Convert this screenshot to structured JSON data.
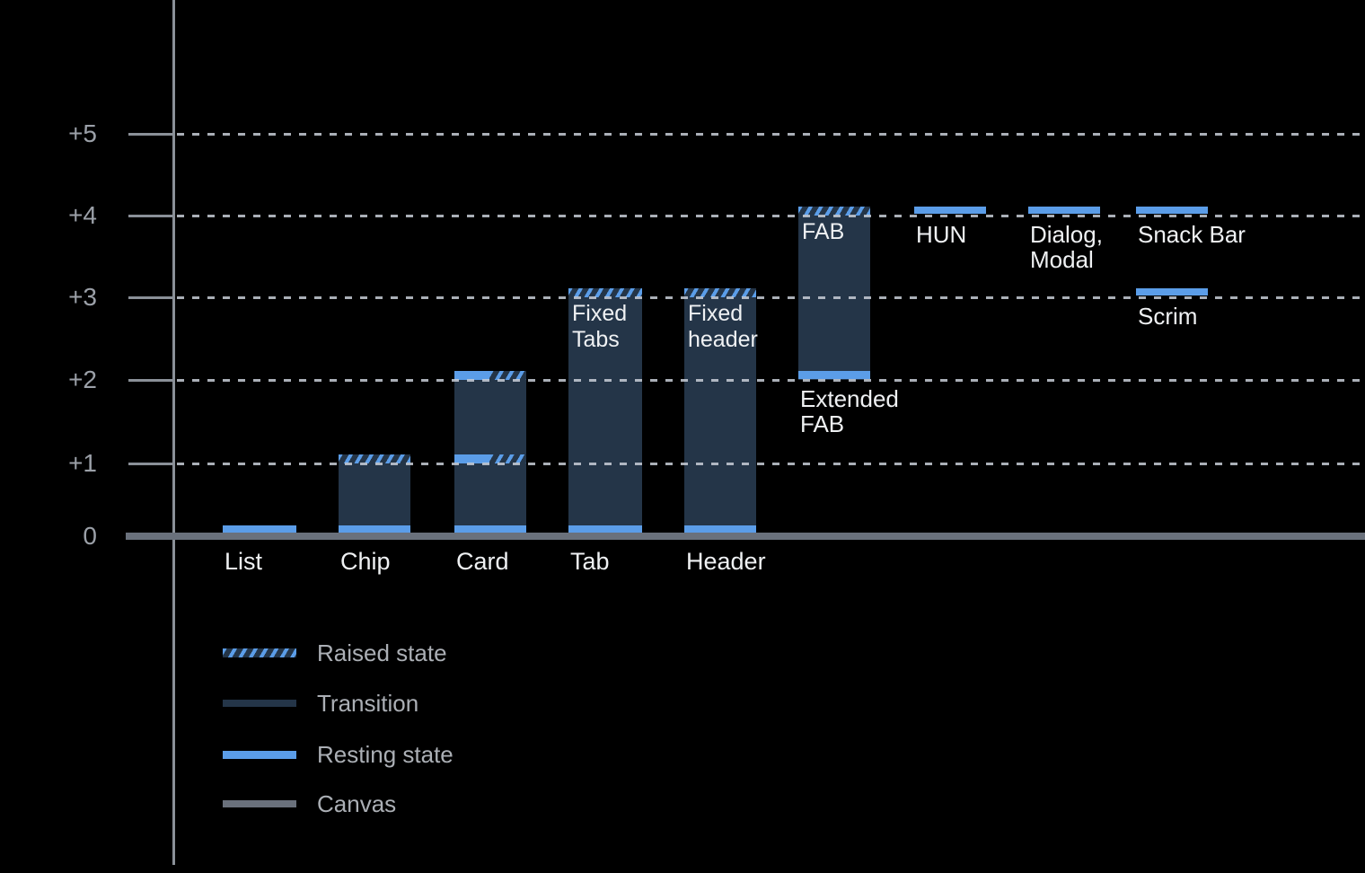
{
  "background": "#000000",
  "colors": {
    "resting_state": "#5B9DE8",
    "transition": "#243548",
    "raised_state_hatch": "#5B9DE8",
    "canvas": "#6A717C",
    "axis": "#8A9098",
    "gridline": "#C8CED7",
    "y_label_text": "#9BA0A8",
    "bar_label_text": "#EFF1F3",
    "legend_label_text": "#ABAFB5"
  },
  "y_axis": {
    "tick_labels": [
      "+5",
      "+4",
      "+3",
      "+2",
      "+1",
      "0"
    ]
  },
  "legend": [
    {
      "swatch": "raised",
      "label": "Raised state"
    },
    {
      "swatch": "transition",
      "label": "Transition"
    },
    {
      "swatch": "resting",
      "label": "Resting state"
    },
    {
      "swatch": "canvas",
      "label": "Canvas"
    }
  ],
  "chart_data": {
    "type": "bar",
    "title": "",
    "xlabel": "",
    "ylabel": "",
    "ylim": [
      0,
      5
    ],
    "y_tick_labels": [
      "+5",
      "+4",
      "+3",
      "+2",
      "+1",
      "0"
    ],
    "grid": "dotted-horizontal",
    "legend_position": "bottom-left",
    "x_axis_labels": [
      "List",
      "Chip",
      "Card",
      "Tab",
      "Header"
    ],
    "components": [
      {
        "label": "List",
        "axis_label": "List",
        "bands": [
          {
            "level": 0,
            "style": "resting"
          }
        ],
        "transition": null
      },
      {
        "label": "Chip",
        "axis_label": "Chip",
        "bands": [
          {
            "level": 1,
            "style": "raised"
          },
          {
            "level": 0,
            "style": "resting"
          }
        ],
        "transition": [
          0,
          1
        ]
      },
      {
        "label": "Card",
        "axis_label": "Card",
        "bands": [
          {
            "level": 2,
            "style": "split"
          },
          {
            "level": 1,
            "style": "split"
          },
          {
            "level": 0,
            "style": "resting"
          }
        ],
        "transition": [
          0,
          2
        ]
      },
      {
        "label": "Tab",
        "axis_label": "Tab",
        "inner_label": "Fixed\nTabs",
        "bands": [
          {
            "level": 3,
            "style": "raised"
          },
          {
            "level": 0,
            "style": "resting"
          }
        ],
        "transition": [
          0,
          3
        ]
      },
      {
        "label": "Header",
        "axis_label": "Header",
        "inner_label": "Fixed\nheader",
        "bands": [
          {
            "level": 3,
            "style": "raised"
          },
          {
            "level": 0,
            "style": "resting"
          }
        ],
        "transition": [
          0,
          3
        ]
      },
      {
        "label": "FAB",
        "inner_label": "FAB",
        "below_label": "Extended\nFAB",
        "below_label_level": 2,
        "bands": [
          {
            "level": 4,
            "style": "raised"
          },
          {
            "level": 2,
            "style": "resting"
          }
        ],
        "transition": [
          2,
          4
        ]
      },
      {
        "label": "HUN",
        "below_label": "HUN",
        "below_label_level": 4,
        "bands": [
          {
            "level": 4,
            "style": "resting"
          }
        ],
        "transition": null
      },
      {
        "label": "Dialog, Modal",
        "below_label": "Dialog,\nModal",
        "below_label_level": 4,
        "bands": [
          {
            "level": 4,
            "style": "resting"
          }
        ],
        "transition": null
      },
      {
        "label": "Snack Bar",
        "below_label": "Snack Bar",
        "below_label_level": 4,
        "bands": [
          {
            "level": 4,
            "style": "resting"
          }
        ],
        "transition": null
      },
      {
        "label": "Scrim",
        "below_label": "Scrim",
        "below_label_level": 3,
        "bands": [
          {
            "level": 3,
            "style": "resting"
          }
        ],
        "transition": null
      }
    ]
  }
}
